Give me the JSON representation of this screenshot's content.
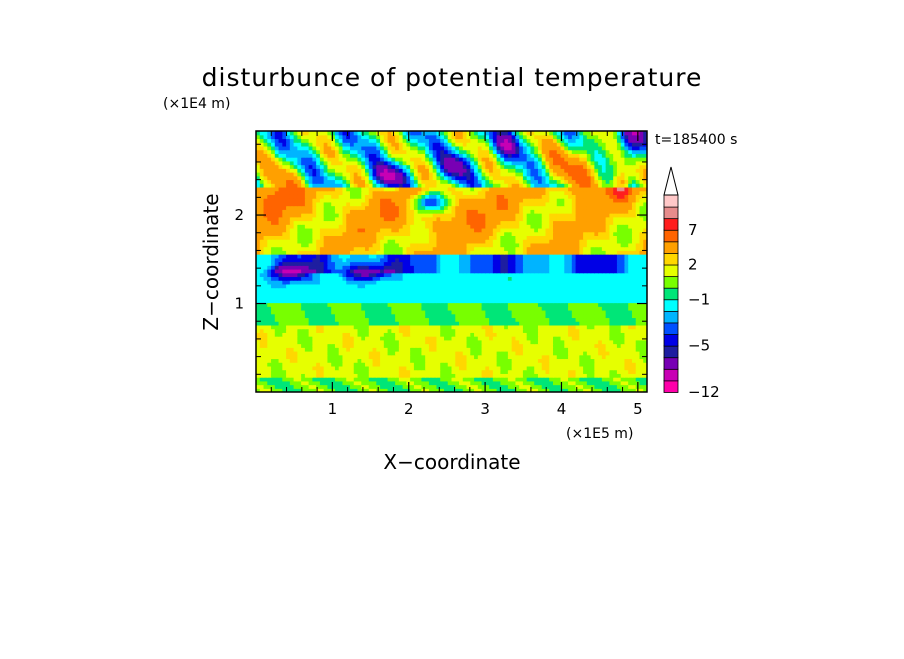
{
  "chart_data": {
    "type": "heatmap",
    "title": "disturbunce of potential temperature",
    "y_unit": "(×1E4 m)",
    "x_unit": "(×1E5 m)",
    "xlabel": "X−coordinate",
    "ylabel": "Z−coordinate",
    "time_label": "t=185400 s",
    "xlim": [
      0,
      5.12
    ],
    "ylim": [
      0,
      2.95
    ],
    "x_ticks": [
      "1",
      "2",
      "3",
      "4",
      "5"
    ],
    "y_ticks": [
      "1",
      "2"
    ],
    "colorbar": {
      "labels": [
        "7",
        "2",
        "−1",
        "−5",
        "−12"
      ],
      "levels": [
        -12,
        -10,
        -8,
        -6,
        -5,
        -4,
        -3,
        -2,
        -1,
        0,
        1,
        2,
        3,
        5,
        7,
        9,
        11
      ],
      "colors": [
        "#ff00aa",
        "#c800b4",
        "#7800b4",
        "#1e1ea0",
        "#0000e6",
        "#0050ff",
        "#00b4ff",
        "#00ffff",
        "#00e678",
        "#78ff00",
        "#e6ff00",
        "#ffd700",
        "#ffa000",
        "#ff6400",
        "#ff1e1e",
        "#e68c8c",
        "#ffc8c8"
      ],
      "extend": "max"
    },
    "field_description_by_layer": [
      {
        "z_range": [
          0.0,
          0.15
        ],
        "approx_value": 0.5
      },
      {
        "z_range": [
          0.15,
          0.75
        ],
        "approx_value": 1.5
      },
      {
        "z_range": [
          0.75,
          1.0
        ],
        "approx_value": 0.0
      },
      {
        "z_range": [
          1.0,
          1.35
        ],
        "approx_value": -1.5
      },
      {
        "z_range": [
          1.35,
          1.55
        ],
        "approx_value": -4.0
      },
      {
        "z_range": [
          1.55,
          2.3
        ],
        "approx_value": 3.0
      },
      {
        "z_range": [
          2.3,
          2.95
        ],
        "approx_value": -2.0
      }
    ]
  }
}
